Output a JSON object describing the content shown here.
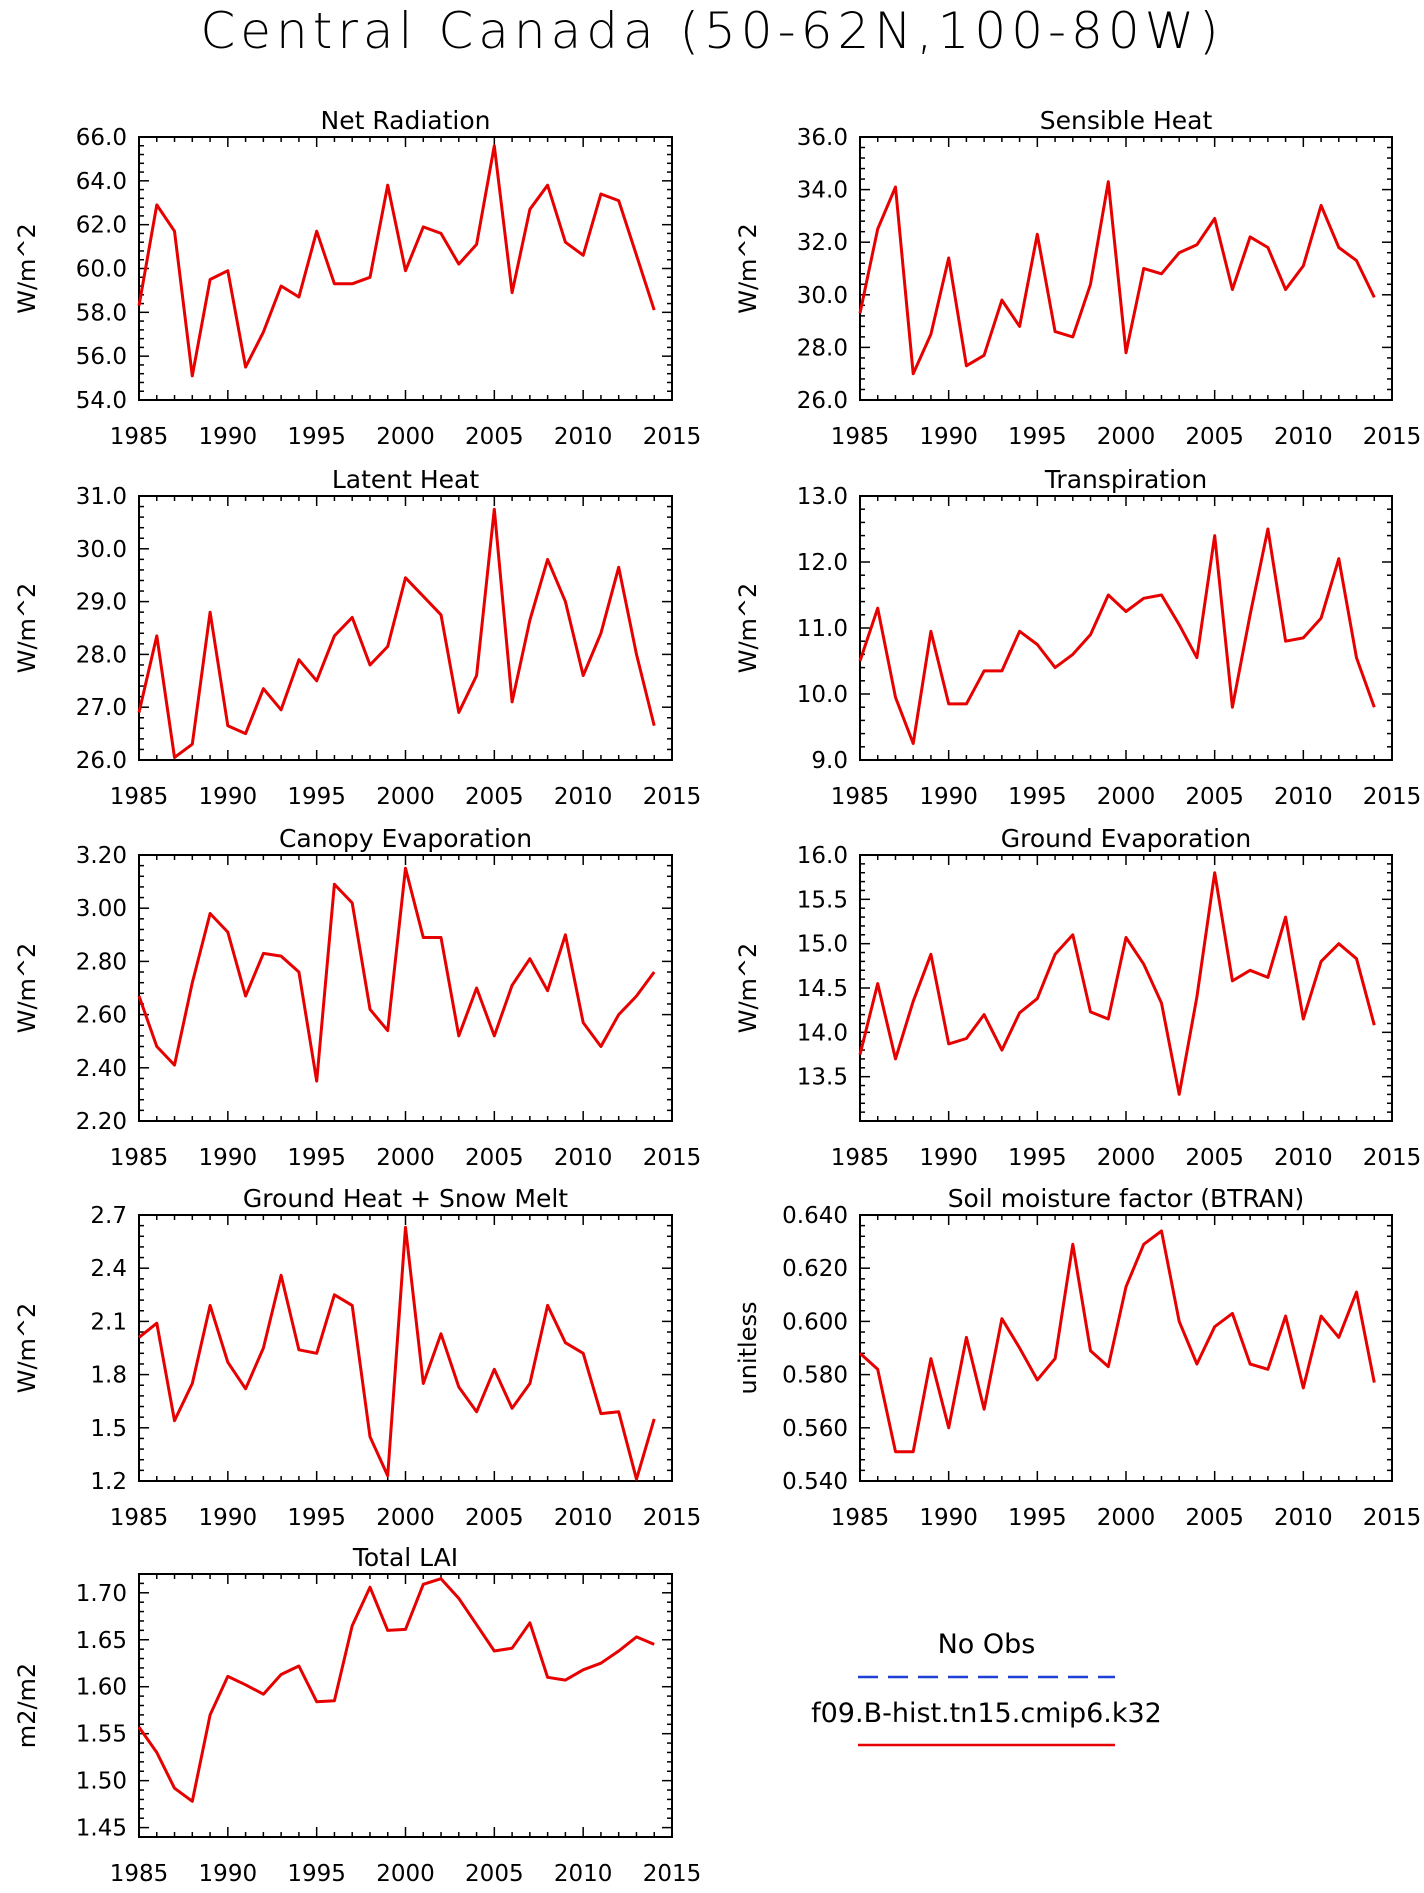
{
  "page": {
    "title": "Central Canada (50-62N,100-80W)"
  },
  "legend": {
    "entries": [
      {
        "label": "No Obs",
        "color": "#1f3fd6",
        "style": "dashed"
      },
      {
        "label": "f09.B-hist.tn15.cmip6.k32",
        "color": "#e60000",
        "style": "solid"
      }
    ]
  },
  "chart_data": [
    {
      "type": "line",
      "title": "Net Radiation",
      "xlabel": "",
      "ylabel": "W/m^2",
      "xlim": [
        1985,
        2015
      ],
      "ylim": [
        54,
        66
      ],
      "xticks": [
        "1985",
        "1990",
        "1995",
        "2000",
        "2005",
        "2010",
        "2015"
      ],
      "yticks": [
        "54.0",
        "56.0",
        "58.0",
        "60.0",
        "62.0",
        "64.0",
        "66.0"
      ],
      "series": [
        {
          "color": "#e60000",
          "x": [
            1985,
            1986,
            1987,
            1988,
            1989,
            1990,
            1991,
            1992,
            1993,
            1994,
            1995,
            1996,
            1997,
            1998,
            1999,
            2000,
            2001,
            2002,
            2003,
            2004,
            2005,
            2006,
            2007,
            2008,
            2009,
            2010,
            2011,
            2012,
            2013,
            2014
          ],
          "y": [
            58.3,
            62.9,
            61.7,
            55.1,
            59.5,
            59.9,
            55.5,
            57.1,
            59.2,
            58.7,
            61.7,
            59.3,
            59.3,
            59.6,
            63.8,
            59.9,
            61.9,
            61.6,
            60.2,
            61.1,
            65.6,
            58.9,
            62.7,
            63.8,
            61.2,
            60.6,
            63.4,
            63.1,
            60.6,
            58.1
          ]
        }
      ]
    },
    {
      "type": "line",
      "title": "Sensible Heat",
      "xlabel": "",
      "ylabel": "W/m^2",
      "xlim": [
        1985,
        2015
      ],
      "ylim": [
        26,
        36
      ],
      "xticks": [
        "1985",
        "1990",
        "1995",
        "2000",
        "2005",
        "2010",
        "2015"
      ],
      "yticks": [
        "26.0",
        "28.0",
        "30.0",
        "32.0",
        "34.0",
        "36.0"
      ],
      "series": [
        {
          "color": "#e60000",
          "x": [
            1985,
            1986,
            1987,
            1988,
            1989,
            1990,
            1991,
            1992,
            1993,
            1994,
            1995,
            1996,
            1997,
            1998,
            1999,
            2000,
            2001,
            2002,
            2003,
            2004,
            2005,
            2006,
            2007,
            2008,
            2009,
            2010,
            2011,
            2012,
            2013,
            2014
          ],
          "y": [
            29.3,
            32.5,
            34.1,
            27.0,
            28.5,
            31.4,
            27.3,
            27.7,
            29.8,
            28.8,
            32.3,
            28.6,
            28.4,
            30.4,
            34.3,
            27.8,
            31.0,
            30.8,
            31.6,
            31.9,
            32.9,
            30.2,
            32.2,
            31.8,
            30.2,
            31.1,
            33.4,
            31.8,
            31.3,
            29.9
          ]
        }
      ]
    },
    {
      "type": "line",
      "title": "Latent Heat",
      "xlabel": "",
      "ylabel": "W/m^2",
      "xlim": [
        1985,
        2015
      ],
      "ylim": [
        26,
        31
      ],
      "xticks": [
        "1985",
        "1990",
        "1995",
        "2000",
        "2005",
        "2010",
        "2015"
      ],
      "yticks": [
        "26.0",
        "27.0",
        "28.0",
        "29.0",
        "30.0",
        "31.0"
      ],
      "series": [
        {
          "color": "#e60000",
          "x": [
            1985,
            1986,
            1987,
            1988,
            1989,
            1990,
            1991,
            1992,
            1993,
            1994,
            1995,
            1996,
            1997,
            1998,
            1999,
            2000,
            2001,
            2002,
            2003,
            2004,
            2005,
            2006,
            2007,
            2008,
            2009,
            2010,
            2011,
            2012,
            2013,
            2014
          ],
          "y": [
            26.9,
            28.35,
            26.05,
            26.3,
            28.8,
            26.65,
            26.5,
            27.35,
            26.95,
            27.9,
            27.5,
            28.35,
            28.7,
            27.8,
            28.15,
            29.45,
            29.1,
            28.75,
            26.9,
            27.6,
            30.75,
            27.1,
            28.65,
            29.8,
            29.0,
            27.6,
            28.4,
            29.65,
            28.0,
            26.65
          ]
        }
      ]
    },
    {
      "type": "line",
      "title": "Transpiration",
      "xlabel": "",
      "ylabel": "W/m^2",
      "xlim": [
        1985,
        2015
      ],
      "ylim": [
        9,
        13
      ],
      "xticks": [
        "1985",
        "1990",
        "1995",
        "2000",
        "2005",
        "2010",
        "2015"
      ],
      "yticks": [
        "9.0",
        "10.0",
        "11.0",
        "12.0",
        "13.0"
      ],
      "series": [
        {
          "color": "#e60000",
          "x": [
            1985,
            1986,
            1987,
            1988,
            1989,
            1990,
            1991,
            1992,
            1993,
            1994,
            1995,
            1996,
            1997,
            1998,
            1999,
            2000,
            2001,
            2002,
            2003,
            2004,
            2005,
            2006,
            2007,
            2008,
            2009,
            2010,
            2011,
            2012,
            2013,
            2014
          ],
          "y": [
            10.5,
            11.3,
            9.95,
            9.25,
            10.95,
            9.85,
            9.85,
            10.35,
            10.35,
            10.95,
            10.75,
            10.4,
            10.6,
            10.9,
            11.5,
            11.25,
            11.45,
            11.5,
            11.05,
            10.55,
            12.4,
            9.8,
            11.2,
            12.5,
            10.8,
            10.85,
            11.15,
            12.05,
            10.55,
            9.8
          ]
        }
      ]
    },
    {
      "type": "line",
      "title": "Canopy Evaporation",
      "xlabel": "",
      "ylabel": "W/m^2",
      "xlim": [
        1985,
        2015
      ],
      "ylim": [
        2.2,
        3.2
      ],
      "xticks": [
        "1985",
        "1990",
        "1995",
        "2000",
        "2005",
        "2010",
        "2015"
      ],
      "yticks": [
        "2.20",
        "2.40",
        "2.60",
        "2.80",
        "3.00",
        "3.20"
      ],
      "series": [
        {
          "color": "#e60000",
          "x": [
            1985,
            1986,
            1987,
            1988,
            1989,
            1990,
            1991,
            1992,
            1993,
            1994,
            1995,
            1996,
            1997,
            1998,
            1999,
            2000,
            2001,
            2002,
            2003,
            2004,
            2005,
            2006,
            2007,
            2008,
            2009,
            2010,
            2011,
            2012,
            2013,
            2014
          ],
          "y": [
            2.67,
            2.48,
            2.41,
            2.72,
            2.98,
            2.91,
            2.67,
            2.83,
            2.82,
            2.76,
            2.35,
            3.09,
            3.02,
            2.62,
            2.54,
            3.15,
            2.89,
            2.89,
            2.52,
            2.7,
            2.52,
            2.71,
            2.81,
            2.69,
            2.9,
            2.57,
            2.48,
            2.6,
            2.67,
            2.76
          ]
        }
      ]
    },
    {
      "type": "line",
      "title": "Ground Evaporation",
      "xlabel": "",
      "ylabel": "W/m^2",
      "xlim": [
        1985,
        2015
      ],
      "ylim": [
        13.0,
        16.0
      ],
      "xticks": [
        "1985",
        "1990",
        "1995",
        "2000",
        "2005",
        "2010",
        "2015"
      ],
      "yticks": [
        "13.5",
        "14.0",
        "14.5",
        "15.0",
        "15.5",
        "16.0"
      ],
      "series": [
        {
          "color": "#e60000",
          "x": [
            1985,
            1986,
            1987,
            1988,
            1989,
            1990,
            1991,
            1992,
            1993,
            1994,
            1995,
            1996,
            1997,
            1998,
            1999,
            2000,
            2001,
            2002,
            2003,
            2004,
            2005,
            2006,
            2007,
            2008,
            2009,
            2010,
            2011,
            2012,
            2013,
            2014
          ],
          "y": [
            13.75,
            14.55,
            13.7,
            14.35,
            14.88,
            13.87,
            13.93,
            14.2,
            13.8,
            14.22,
            14.38,
            14.88,
            15.1,
            14.23,
            14.15,
            15.07,
            14.77,
            14.33,
            13.3,
            14.4,
            15.8,
            14.58,
            14.7,
            14.62,
            15.3,
            14.15,
            14.8,
            15.0,
            14.83,
            14.08
          ]
        }
      ]
    },
    {
      "type": "line",
      "title": "Ground Heat + Snow Melt",
      "xlabel": "",
      "ylabel": "W/m^2",
      "xlim": [
        1985,
        2015
      ],
      "ylim": [
        1.2,
        2.7
      ],
      "xticks": [
        "1985",
        "1990",
        "1995",
        "2000",
        "2005",
        "2010",
        "2015"
      ],
      "yticks": [
        "1.2",
        "1.5",
        "1.8",
        "2.1",
        "2.4",
        "2.7"
      ],
      "series": [
        {
          "color": "#e60000",
          "x": [
            1985,
            1986,
            1987,
            1988,
            1989,
            1990,
            1991,
            1992,
            1993,
            1994,
            1995,
            1996,
            1997,
            1998,
            1999,
            2000,
            2001,
            2002,
            2003,
            2004,
            2005,
            2006,
            2007,
            2008,
            2009,
            2010,
            2011,
            2012,
            2013,
            2014
          ],
          "y": [
            2.01,
            2.09,
            1.54,
            1.75,
            2.19,
            1.87,
            1.72,
            1.95,
            2.36,
            1.94,
            1.92,
            2.25,
            2.19,
            1.45,
            1.23,
            2.63,
            1.75,
            2.03,
            1.73,
            1.59,
            1.83,
            1.61,
            1.75,
            2.19,
            1.98,
            1.92,
            1.58,
            1.59,
            1.21,
            1.55
          ]
        }
      ]
    },
    {
      "type": "line",
      "title": "Soil moisture factor (BTRAN)",
      "xlabel": "",
      "ylabel": "unitless",
      "xlim": [
        1985,
        2015
      ],
      "ylim": [
        0.54,
        0.64
      ],
      "xticks": [
        "1985",
        "1990",
        "1995",
        "2000",
        "2005",
        "2010",
        "2015"
      ],
      "yticks": [
        "0.540",
        "0.560",
        "0.580",
        "0.600",
        "0.620",
        "0.640"
      ],
      "series": [
        {
          "color": "#e60000",
          "x": [
            1985,
            1986,
            1987,
            1988,
            1989,
            1990,
            1991,
            1992,
            1993,
            1994,
            1995,
            1996,
            1997,
            1998,
            1999,
            2000,
            2001,
            2002,
            2003,
            2004,
            2005,
            2006,
            2007,
            2008,
            2009,
            2010,
            2011,
            2012,
            2013,
            2014
          ],
          "y": [
            0.588,
            0.582,
            0.551,
            0.551,
            0.586,
            0.56,
            0.594,
            0.567,
            0.601,
            0.59,
            0.578,
            0.586,
            0.629,
            0.589,
            0.583,
            0.613,
            0.629,
            0.634,
            0.6,
            0.584,
            0.598,
            0.603,
            0.584,
            0.582,
            0.602,
            0.575,
            0.602,
            0.594,
            0.611,
            0.577
          ]
        }
      ]
    },
    {
      "type": "line",
      "title": "Total LAI",
      "xlabel": "",
      "ylabel": "m2/m2",
      "xlim": [
        1985,
        2015
      ],
      "ylim": [
        1.44,
        1.72
      ],
      "xticks": [
        "1985",
        "1990",
        "1995",
        "2000",
        "2005",
        "2010",
        "2015"
      ],
      "yticks": [
        "1.45",
        "1.50",
        "1.55",
        "1.60",
        "1.65",
        "1.70"
      ],
      "series": [
        {
          "color": "#e60000",
          "x": [
            1985,
            1986,
            1987,
            1988,
            1989,
            1990,
            1991,
            1992,
            1993,
            1994,
            1995,
            1996,
            1997,
            1998,
            1999,
            2000,
            2001,
            2002,
            2003,
            2004,
            2005,
            2006,
            2007,
            2008,
            2009,
            2010,
            2011,
            2012,
            2013,
            2014
          ],
          "y": [
            1.557,
            1.53,
            1.492,
            1.478,
            1.57,
            1.611,
            1.602,
            1.592,
            1.613,
            1.622,
            1.584,
            1.585,
            1.665,
            1.706,
            1.66,
            1.661,
            1.709,
            1.715,
            1.694,
            1.666,
            1.638,
            1.641,
            1.668,
            1.61,
            1.607,
            1.618,
            1.625,
            1.638,
            1.653,
            1.645
          ]
        }
      ]
    }
  ]
}
